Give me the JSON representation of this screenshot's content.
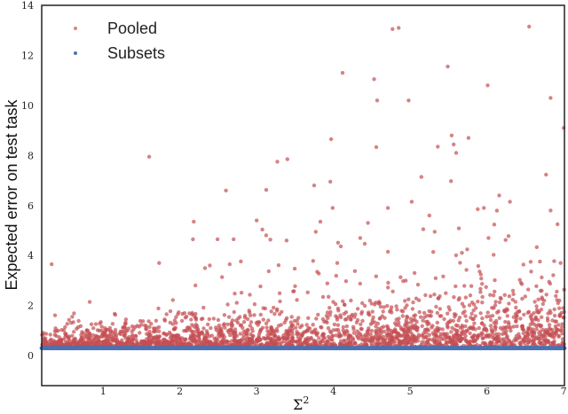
{
  "chart_data": {
    "type": "scatter",
    "title": "",
    "xlabel": "Σ",
    "xlabel_superscript": "2",
    "ylabel": "Expected error on test task",
    "xlim": [
      0.2,
      7.01
    ],
    "ylim": [
      -1.2,
      14.0
    ],
    "xticks": [
      "1",
      "2",
      "3",
      "4",
      "5",
      "6",
      "7"
    ],
    "yticks": [
      "0",
      "2",
      "4",
      "6",
      "8",
      "10",
      "12",
      "14"
    ],
    "grid": false,
    "legend": {
      "placement": "top-left",
      "entries": [
        "Pooled",
        "Subsets"
      ]
    },
    "colors": {
      "pooled": "#c44e52",
      "subsets": "#4c72b0"
    },
    "series": [
      {
        "name": "Pooled",
        "outliers": [
          [
            0.33,
            3.65
          ],
          [
            1.6,
            7.95
          ],
          [
            4.12,
            11.3
          ],
          [
            4.77,
            13.05
          ],
          [
            4.85,
            13.1
          ],
          [
            6.55,
            13.15
          ],
          [
            5.49,
            11.55
          ],
          [
            4.53,
            11.05
          ],
          [
            4.57,
            10.2
          ],
          [
            4.98,
            10.2
          ],
          [
            6.01,
            10.8
          ],
          [
            6.83,
            10.3
          ],
          [
            7.0,
            9.1
          ],
          [
            3.97,
            8.65
          ],
          [
            3.4,
            7.85
          ],
          [
            3.27,
            7.75
          ],
          [
            5.54,
            8.8
          ],
          [
            5.76,
            8.7
          ],
          [
            5.36,
            8.35
          ],
          [
            5.6,
            8.1
          ],
          [
            3.96,
            6.95
          ],
          [
            3.75,
            6.8
          ],
          [
            2.6,
            6.6
          ],
          [
            5.02,
            6.15
          ],
          [
            4.71,
            5.9
          ],
          [
            5.96,
            5.9
          ],
          [
            6.16,
            6.4
          ],
          [
            6.3,
            6.15
          ],
          [
            2.18,
            5.35
          ],
          [
            3.0,
            5.4
          ],
          [
            3.83,
            5.35
          ],
          [
            3.99,
            5.9
          ],
          [
            4.45,
            5.3
          ],
          [
            5.25,
            5.6
          ],
          [
            5.88,
            5.85
          ],
          [
            6.83,
            5.8
          ],
          [
            2.17,
            4.65
          ],
          [
            2.49,
            4.65
          ],
          [
            2.7,
            4.65
          ],
          [
            3.39,
            4.6
          ],
          [
            3.77,
            4.95
          ],
          [
            4.35,
            4.7
          ],
          [
            5.17,
            5.05
          ],
          [
            5.32,
            4.95
          ],
          [
            6.02,
            4.7
          ],
          [
            6.92,
            5.25
          ],
          [
            1.73,
            3.7
          ],
          [
            2.39,
            3.6
          ],
          [
            4.05,
            3.7
          ],
          [
            4.71,
            4.15
          ],
          [
            6.57,
            3.75
          ],
          [
            6.96,
            3.7
          ]
        ],
        "band": {
          "n": 2600,
          "baseline": 0.3,
          "spread_at_min_x": 0.2,
          "spread_at_max_x": 0.85
        }
      },
      {
        "name": "Subsets",
        "y": 0.3,
        "n": 700
      }
    ]
  }
}
